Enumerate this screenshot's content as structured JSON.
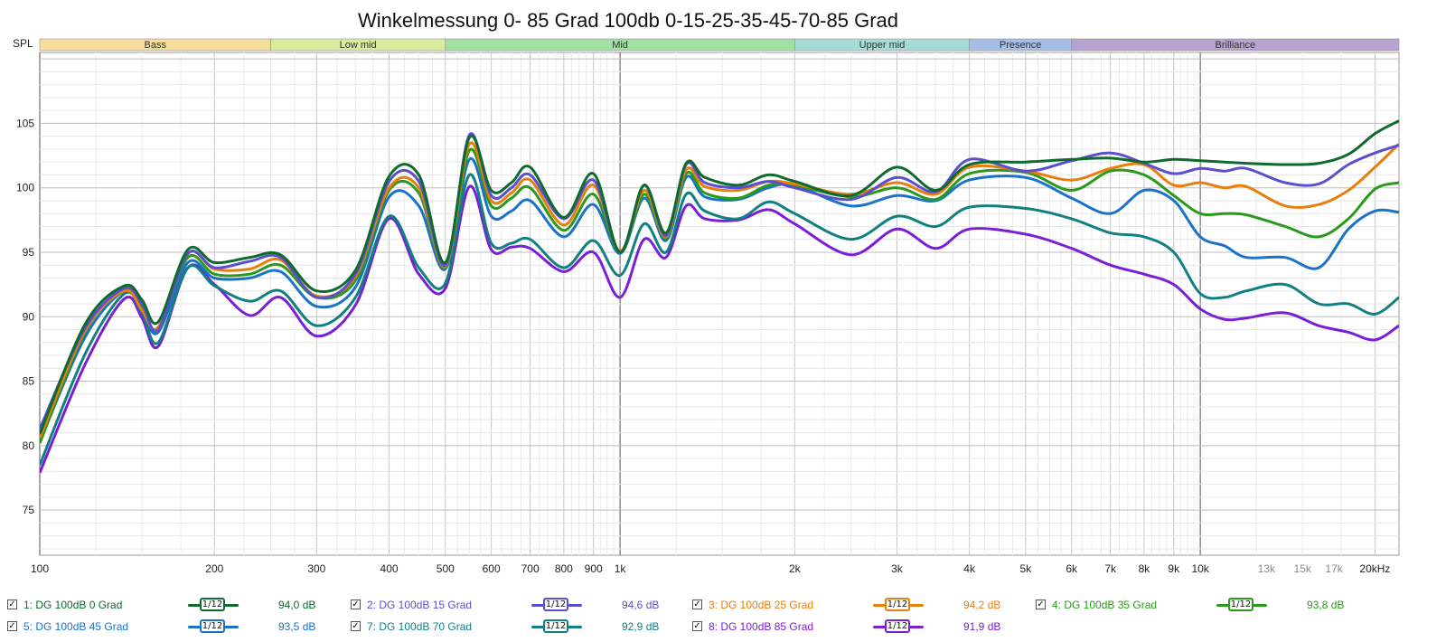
{
  "chart_data": {
    "type": "line",
    "title": "Winkelmessung 0- 85 Grad 100db 0-15-25-35-45-70-85 Grad",
    "ylabel": "SPL",
    "xscale": "log",
    "xlim": [
      100,
      22000
    ],
    "ylim": [
      71.5,
      110.5
    ],
    "grid": true,
    "x_ticks": [
      "100",
      "200",
      "300",
      "400",
      "500",
      "600",
      "700",
      "800",
      "900",
      "1k",
      "2k",
      "3k",
      "4k",
      "5k",
      "6k",
      "7k",
      "8k",
      "9k",
      "10k",
      "13k",
      "15k",
      "17k",
      "20kHz"
    ],
    "x_tick_values": [
      100,
      200,
      300,
      400,
      500,
      600,
      700,
      800,
      900,
      1000,
      2000,
      3000,
      4000,
      5000,
      6000,
      7000,
      8000,
      9000,
      10000,
      13000,
      15000,
      17000,
      20000
    ],
    "x_tick_minor": [
      false,
      false,
      false,
      false,
      false,
      false,
      false,
      false,
      false,
      false,
      false,
      false,
      false,
      false,
      false,
      false,
      false,
      false,
      false,
      true,
      true,
      true,
      false
    ],
    "y_ticks": [
      75,
      80,
      85,
      90,
      95,
      100,
      105
    ],
    "bands": [
      {
        "label": "Bass",
        "from": 100,
        "to": 250,
        "color": "#f7dd9b"
      },
      {
        "label": "Low mid",
        "from": 250,
        "to": 500,
        "color": "#d8ec9e"
      },
      {
        "label": "Mid",
        "from": 500,
        "to": 2000,
        "color": "#a3e0a3"
      },
      {
        "label": "Upper mid",
        "from": 2000,
        "to": 4000,
        "color": "#a7dcd6"
      },
      {
        "label": "Presence",
        "from": 4000,
        "to": 6000,
        "color": "#a7bde3"
      },
      {
        "label": "Brilliance",
        "from": 6000,
        "to": 22000,
        "color": "#b8a3d0"
      }
    ],
    "x": [
      100,
      120,
      140,
      150,
      160,
      180,
      200,
      230,
      260,
      300,
      350,
      400,
      450,
      500,
      550,
      600,
      650,
      700,
      800,
      900,
      1000,
      1100,
      1200,
      1300,
      1400,
      1600,
      1800,
      2000,
      2500,
      3000,
      3500,
      4000,
      5000,
      6000,
      7000,
      8000,
      9000,
      10000,
      11000,
      12000,
      14000,
      16000,
      18000,
      20000,
      22000
    ],
    "series": [
      {
        "name": "1: DG 100dB 0 Grad",
        "color": "#0e6b2e",
        "level": "94,0 dB",
        "smoothing": "1/12",
        "values": [
          80.9,
          89.5,
          92.4,
          91.3,
          89.6,
          95.2,
          94.2,
          94.6,
          94.8,
          92.0,
          93.6,
          100.9,
          101.0,
          94.2,
          103.9,
          99.8,
          100.4,
          101.6,
          97.7,
          101.1,
          95.0,
          100.2,
          96.5,
          101.9,
          100.8,
          100.2,
          101.0,
          100.5,
          99.4,
          101.6,
          99.8,
          101.8,
          102.0,
          102.2,
          102.3,
          102.0,
          102.2,
          102.1,
          102.0,
          101.9,
          101.8,
          101.9,
          102.6,
          104.2,
          105.2
        ]
      },
      {
        "name": "2: DG 100dB 15 Grad",
        "color": "#5a4fcf",
        "level": "94,6 dB",
        "smoothing": "1/12",
        "values": [
          81.3,
          89.2,
          92.2,
          91.0,
          89.0,
          94.9,
          93.8,
          94.3,
          94.6,
          91.5,
          93.3,
          100.5,
          100.5,
          94.0,
          104.1,
          99.4,
          100.0,
          101.0,
          97.6,
          100.6,
          95.0,
          100.2,
          96.3,
          101.8,
          100.4,
          100.0,
          100.5,
          100.0,
          99.1,
          100.8,
          99.7,
          102.2,
          101.3,
          102.1,
          102.7,
          101.9,
          101.1,
          101.5,
          101.3,
          101.5,
          100.4,
          100.3,
          101.8,
          102.7,
          103.3
        ]
      },
      {
        "name": "3: DG 100dB 25 Grad",
        "color": "#e87e0c",
        "level": "94,2 dB",
        "smoothing": "1/12",
        "values": [
          80.6,
          89.0,
          92.0,
          90.5,
          89.2,
          94.9,
          93.7,
          93.7,
          94.4,
          91.6,
          93.1,
          100.0,
          100.0,
          93.9,
          103.4,
          99.0,
          99.6,
          100.6,
          97.1,
          100.2,
          95.1,
          99.8,
          96.2,
          101.4,
          100.1,
          99.8,
          100.5,
          100.3,
          99.5,
          100.4,
          99.5,
          101.6,
          101.3,
          100.6,
          101.5,
          101.8,
          100.2,
          100.4,
          100.0,
          100.1,
          98.6,
          98.7,
          99.8,
          101.6,
          103.4
        ]
      },
      {
        "name": "4: DG 100dB 35 Grad",
        "color": "#2a9a1a",
        "level": "93,8 dB",
        "smoothing": "1/12",
        "values": [
          80.2,
          88.9,
          92.2,
          90.7,
          89.1,
          94.6,
          93.3,
          93.3,
          94.0,
          91.5,
          92.8,
          99.8,
          99.6,
          93.8,
          102.9,
          98.6,
          99.2,
          100.0,
          96.7,
          99.5,
          95.0,
          99.5,
          96.1,
          101.1,
          99.6,
          99.2,
          100.2,
          100.2,
          99.3,
          100.0,
          99.1,
          101.1,
          101.2,
          99.8,
          101.3,
          101.0,
          99.4,
          98.0,
          98.0,
          97.9,
          97.0,
          96.2,
          97.6,
          99.9,
          100.4
        ]
      },
      {
        "name": "5: DG 100dB 45 Grad",
        "color": "#1a72c9",
        "level": "93,5 dB",
        "smoothing": "1/12",
        "values": [
          80.3,
          88.5,
          92.0,
          90.5,
          88.8,
          94.2,
          93.0,
          93.0,
          93.5,
          90.8,
          92.3,
          99.3,
          98.6,
          93.7,
          102.2,
          97.8,
          98.2,
          99.0,
          96.2,
          98.7,
          94.9,
          99.2,
          95.9,
          100.8,
          99.3,
          99.1,
          100.0,
          100.2,
          98.6,
          99.4,
          99.0,
          100.6,
          100.8,
          99.2,
          98.0,
          99.8,
          99.0,
          96.2,
          95.5,
          94.6,
          94.6,
          93.8,
          96.8,
          98.2,
          98.1
        ]
      },
      {
        "name": "7: DG 100dB 70 Grad",
        "color": "#118080",
        "level": "92,9 dB",
        "smoothing": "1/12",
        "values": [
          78.5,
          87.2,
          91.8,
          90.3,
          88.0,
          93.8,
          92.4,
          91.2,
          92.0,
          89.3,
          91.5,
          97.8,
          93.8,
          92.6,
          101.0,
          95.7,
          95.7,
          96.0,
          93.8,
          95.9,
          93.2,
          97.2,
          95.0,
          99.5,
          98.2,
          97.6,
          98.9,
          98.0,
          96.0,
          97.8,
          97.0,
          98.5,
          98.4,
          97.6,
          96.5,
          96.2,
          95.0,
          91.8,
          91.5,
          92.0,
          92.5,
          91.0,
          91.0,
          90.2,
          91.5
        ]
      },
      {
        "name": "8: DG 100dB 85 Grad",
        "color": "#7a1ed8",
        "level": "91,9 dB",
        "smoothing": "1/12",
        "values": [
          77.9,
          86.4,
          91.4,
          89.9,
          87.7,
          93.8,
          92.5,
          90.1,
          91.5,
          88.5,
          90.9,
          97.6,
          93.3,
          92.2,
          100.1,
          95.2,
          95.4,
          95.3,
          93.5,
          95.0,
          91.5,
          96.0,
          94.6,
          98.6,
          97.6,
          97.5,
          98.3,
          97.2,
          94.8,
          96.8,
          95.3,
          96.8,
          96.4,
          95.3,
          94.0,
          93.3,
          92.5,
          90.6,
          89.8,
          89.9,
          90.3,
          89.3,
          88.8,
          88.2,
          89.3
        ]
      }
    ]
  }
}
